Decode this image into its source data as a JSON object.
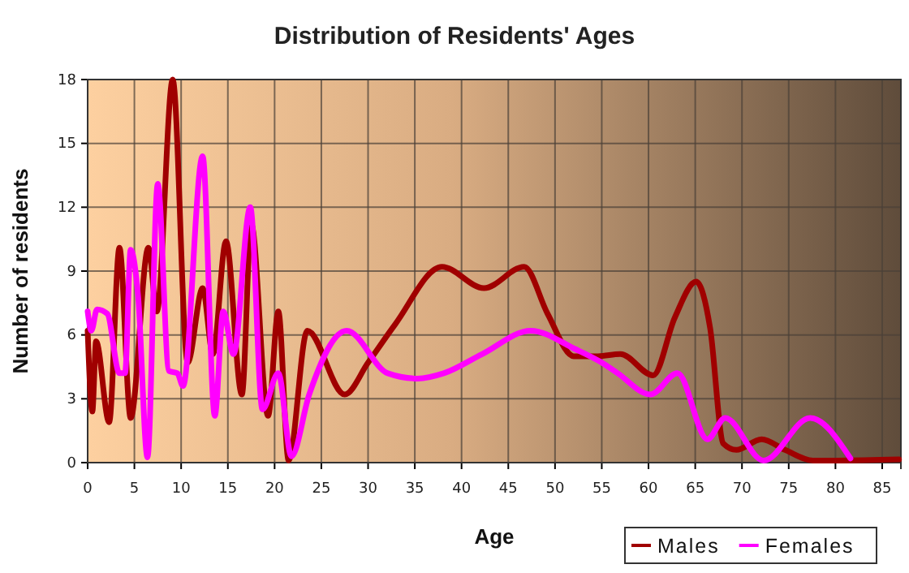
{
  "chart_data": {
    "type": "line",
    "title": "Distribution of Residents' Ages",
    "xlabel": "Age",
    "ylabel": "Number of residents",
    "xlim": [
      0,
      87
    ],
    "xticks": [
      0,
      5,
      10,
      15,
      20,
      25,
      30,
      35,
      40,
      45,
      50,
      55,
      60,
      65,
      70,
      75,
      80,
      85
    ],
    "ylim": [
      0,
      18
    ],
    "yticks": [
      0,
      3,
      6,
      9,
      12,
      15,
      18
    ],
    "grid": true,
    "legend": "bottom right",
    "line_style": "solid",
    "marker": "none",
    "series": [
      {
        "name": "Males",
        "color": "#a00000",
        "x": [
          0,
          0.5,
          0.9,
          2.3,
          3.4,
          4.6,
          6.5,
          7.4,
          9.1,
          10.7,
          12.3,
          13.4,
          14.8,
          16.5,
          17.5,
          19.3,
          20.4,
          21.5,
          23.5,
          27.5,
          30,
          32.9,
          37.9,
          42.4,
          46.7,
          49.2,
          52,
          54.6,
          57,
          60.5,
          62.8,
          65.1,
          66.6,
          68,
          69.4,
          72.1,
          74.6,
          77.6,
          80.3,
          86.8
        ],
        "values": [
          6.2,
          2.4,
          5.7,
          1.9,
          10.1,
          2.1,
          10.1,
          7.1,
          18,
          4.7,
          8.2,
          5.1,
          10.4,
          3.2,
          11.2,
          2.2,
          7.1,
          0.1,
          6.2,
          3.2,
          4.7,
          6.5,
          9.2,
          8.2,
          9.2,
          7,
          5,
          5,
          5.1,
          4.1,
          6.8,
          8.5,
          6.3,
          0.9,
          0.6,
          1.1,
          0.6,
          0.1,
          0.1,
          0.15
        ]
      },
      {
        "name": "Females",
        "color": "#ff00ff",
        "x": [
          0,
          0.4,
          1,
          2.1,
          3.4,
          4,
          4.6,
          5.4,
          6.4,
          7.5,
          8.7,
          9.6,
          10.2,
          12.3,
          13.6,
          14.5,
          15.6,
          17.4,
          18.7,
          20.4,
          21.8,
          23.7,
          27.7,
          32.1,
          35.3,
          38.1,
          42.2,
          47.4,
          52.1,
          55,
          56.7,
          60.2,
          63.1,
          66.3,
          68.2,
          72.3,
          77.3,
          81.6
        ],
        "values": [
          7.1,
          6.2,
          7.2,
          7,
          4.2,
          4.2,
          10,
          7.8,
          0.25,
          13.1,
          4.3,
          4.2,
          3.6,
          14.4,
          2.2,
          7.1,
          5.1,
          12,
          2.5,
          4.2,
          0.3,
          3.2,
          6.2,
          4.2,
          3.95,
          4.2,
          5.1,
          6.2,
          5.35,
          4.7,
          4.2,
          3.2,
          4.2,
          1.1,
          2.1,
          0.1,
          2.1,
          0.2
        ]
      }
    ]
  }
}
